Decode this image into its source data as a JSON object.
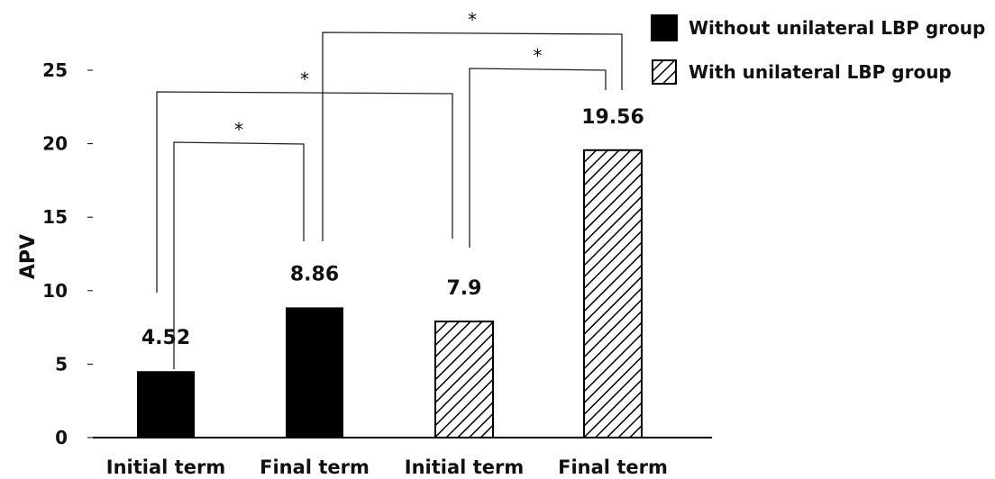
{
  "chart_data": {
    "type": "bar",
    "ylabel": "APV",
    "xlabel": "",
    "ylim": [
      0,
      25
    ],
    "yticks": [
      0,
      5,
      10,
      15,
      20,
      25
    ],
    "grid": false,
    "legend_position": "top-right",
    "categories": [
      "Initial term",
      "Final term",
      "Initial term",
      "Final term"
    ],
    "values": [
      4.52,
      8.86,
      7.9,
      19.56
    ],
    "value_labels": [
      "4.52",
      "8.86",
      "7.9",
      "19.56"
    ],
    "bar_series": [
      0,
      0,
      1,
      1
    ],
    "series": [
      {
        "name": "Without unilateral LBP group",
        "fill": "solid",
        "color": "#000000",
        "indices": [
          0,
          1
        ]
      },
      {
        "name": "With unilateral LBP group",
        "fill": "hatched",
        "color": "#000000",
        "indices": [
          2,
          3
        ]
      }
    ],
    "significance": [
      {
        "from": 0,
        "to": 1,
        "label": "*"
      },
      {
        "from": 0,
        "to": 2,
        "label": "*"
      },
      {
        "from": 2,
        "to": 3,
        "label": "*"
      },
      {
        "from": 1,
        "to": 3,
        "label": "*"
      }
    ]
  }
}
